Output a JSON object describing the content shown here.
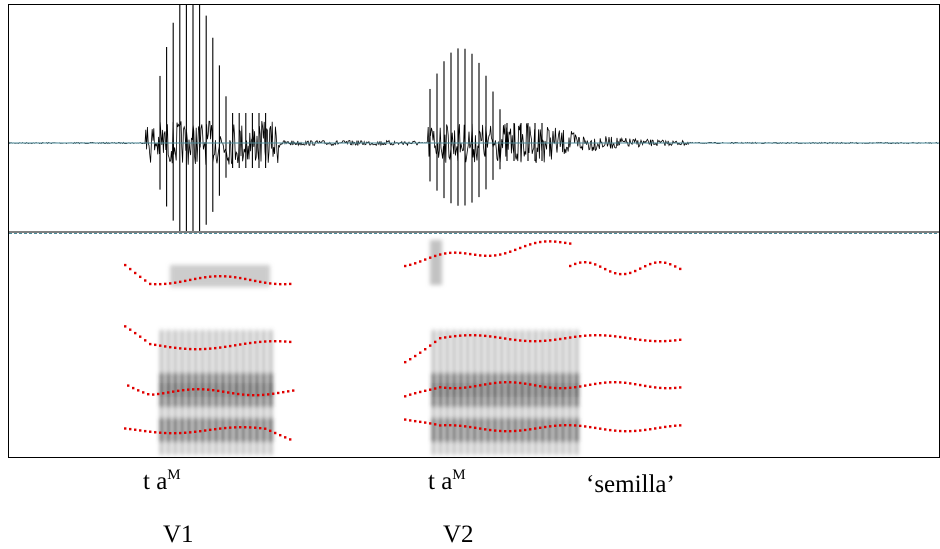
{
  "segments": [
    {
      "text": "t a",
      "sup": "M"
    },
    {
      "text": "t a",
      "sup": "M"
    }
  ],
  "gloss": "‘semilla’",
  "vowels": [
    "V1",
    "V2"
  ]
}
